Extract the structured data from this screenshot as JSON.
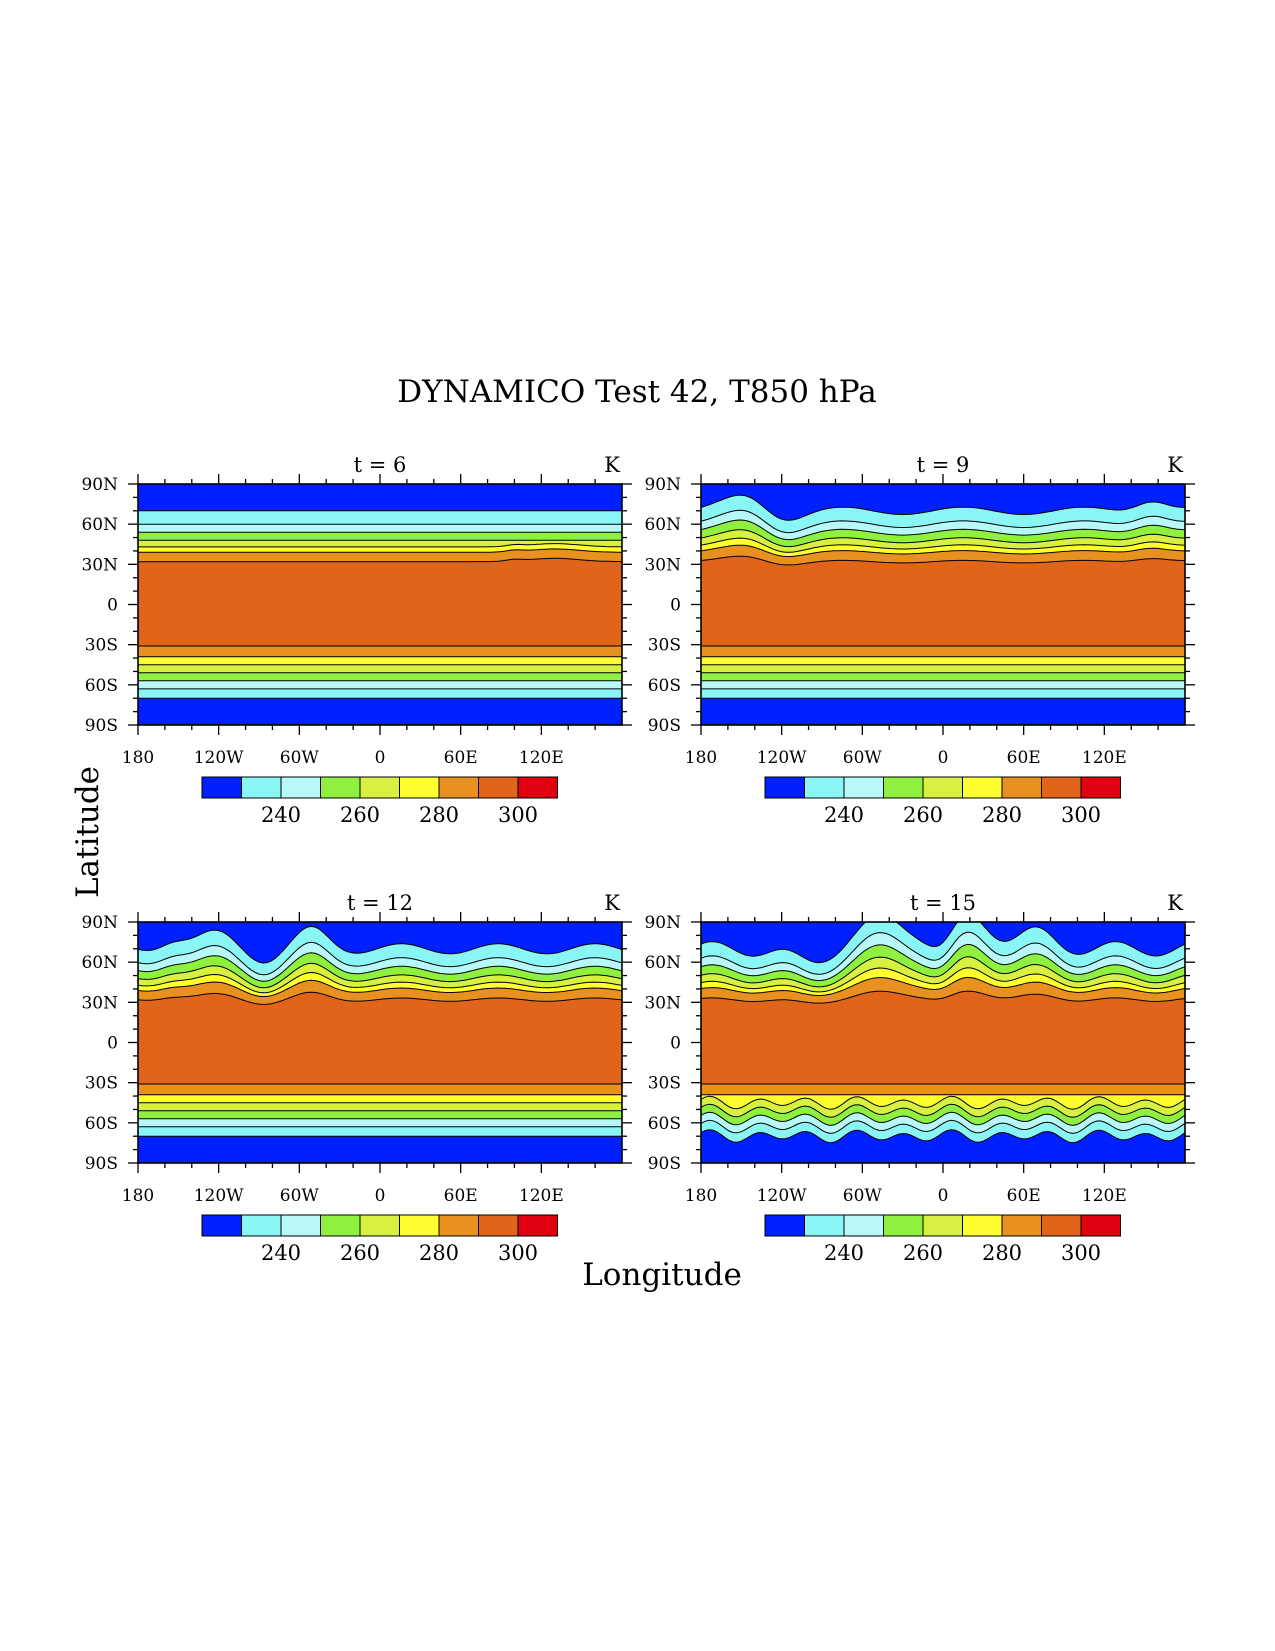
{
  "title": "DYNAMICO Test 42, T850 hPa",
  "xlabel": "Longitude",
  "ylabel": "Latitude",
  "colors": {
    "levels": [
      "#0020ff",
      "#8af5f5",
      "#b8f8f8",
      "#8ff040",
      "#d8f040",
      "#ffff30",
      "#e89020",
      "#e0641a",
      "#e00010"
    ],
    "contour_line": "#000000"
  },
  "colorbar": {
    "bounds": [
      220,
      230,
      240,
      250,
      260,
      270,
      280,
      290,
      300,
      310
    ],
    "labels": [
      "240",
      "260",
      "280",
      "300"
    ]
  },
  "chart_data": [
    {
      "type": "contour",
      "title": "t = 6",
      "units": "K",
      "x_ticks": [
        "180",
        "120W",
        "60W",
        "0",
        "60E",
        "120E"
      ],
      "y_ticks": [
        "90N",
        "60N",
        "30N",
        "0",
        "30S",
        "60S",
        "90S"
      ],
      "xlim": [
        -180,
        180
      ],
      "ylim": [
        -90,
        90
      ],
      "band_boundaries_lat": [
        70,
        60,
        54,
        48,
        43,
        39,
        32,
        -31,
        -39,
        -45,
        -51,
        -57,
        -63,
        -70
      ],
      "disturbance": "weak waves near 40N"
    },
    {
      "type": "contour",
      "title": "t = 9",
      "units": "K",
      "x_ticks": [
        "180",
        "120W",
        "60W",
        "0",
        "60E",
        "120E"
      ],
      "y_ticks": [
        "90N",
        "60N",
        "30N",
        "0",
        "30S",
        "60S",
        "90S"
      ],
      "xlim": [
        -180,
        180
      ],
      "ylim": [
        -90,
        90
      ],
      "band_boundaries_lat": [
        70,
        60,
        54,
        48,
        43,
        39,
        32,
        -31,
        -39,
        -45,
        -51,
        -57,
        -63,
        -70
      ],
      "disturbance": "breaking waves near 140W and 150E in northern midlatitudes"
    },
    {
      "type": "contour",
      "title": "t = 12",
      "units": "K",
      "x_ticks": [
        "180",
        "120W",
        "60W",
        "0",
        "60E",
        "120E"
      ],
      "y_ticks": [
        "90N",
        "60N",
        "30N",
        "0",
        "30S",
        "60S",
        "90S"
      ],
      "xlim": [
        -180,
        180
      ],
      "ylim": [
        -90,
        90
      ],
      "band_boundaries_lat": [
        70,
        60,
        54,
        48,
        43,
        39,
        32,
        -31,
        -39,
        -45,
        -51,
        -57,
        -63,
        -70
      ],
      "disturbance": "wave breaking spreading along 40N-70N"
    },
    {
      "type": "contour",
      "title": "t = 15",
      "units": "K",
      "x_ticks": [
        "180",
        "120W",
        "60W",
        "0",
        "60E",
        "120E"
      ],
      "y_ticks": [
        "90N",
        "60N",
        "30N",
        "0",
        "30S",
        "60S",
        "90S"
      ],
      "xlim": [
        -180,
        180
      ],
      "ylim": [
        -90,
        90
      ],
      "band_boundaries_lat": [
        70,
        60,
        54,
        48,
        43,
        39,
        32,
        -31,
        -39,
        -45,
        -51,
        -57,
        -63,
        -70
      ],
      "disturbance": "large amplitude breaking in both hemispheres"
    }
  ]
}
